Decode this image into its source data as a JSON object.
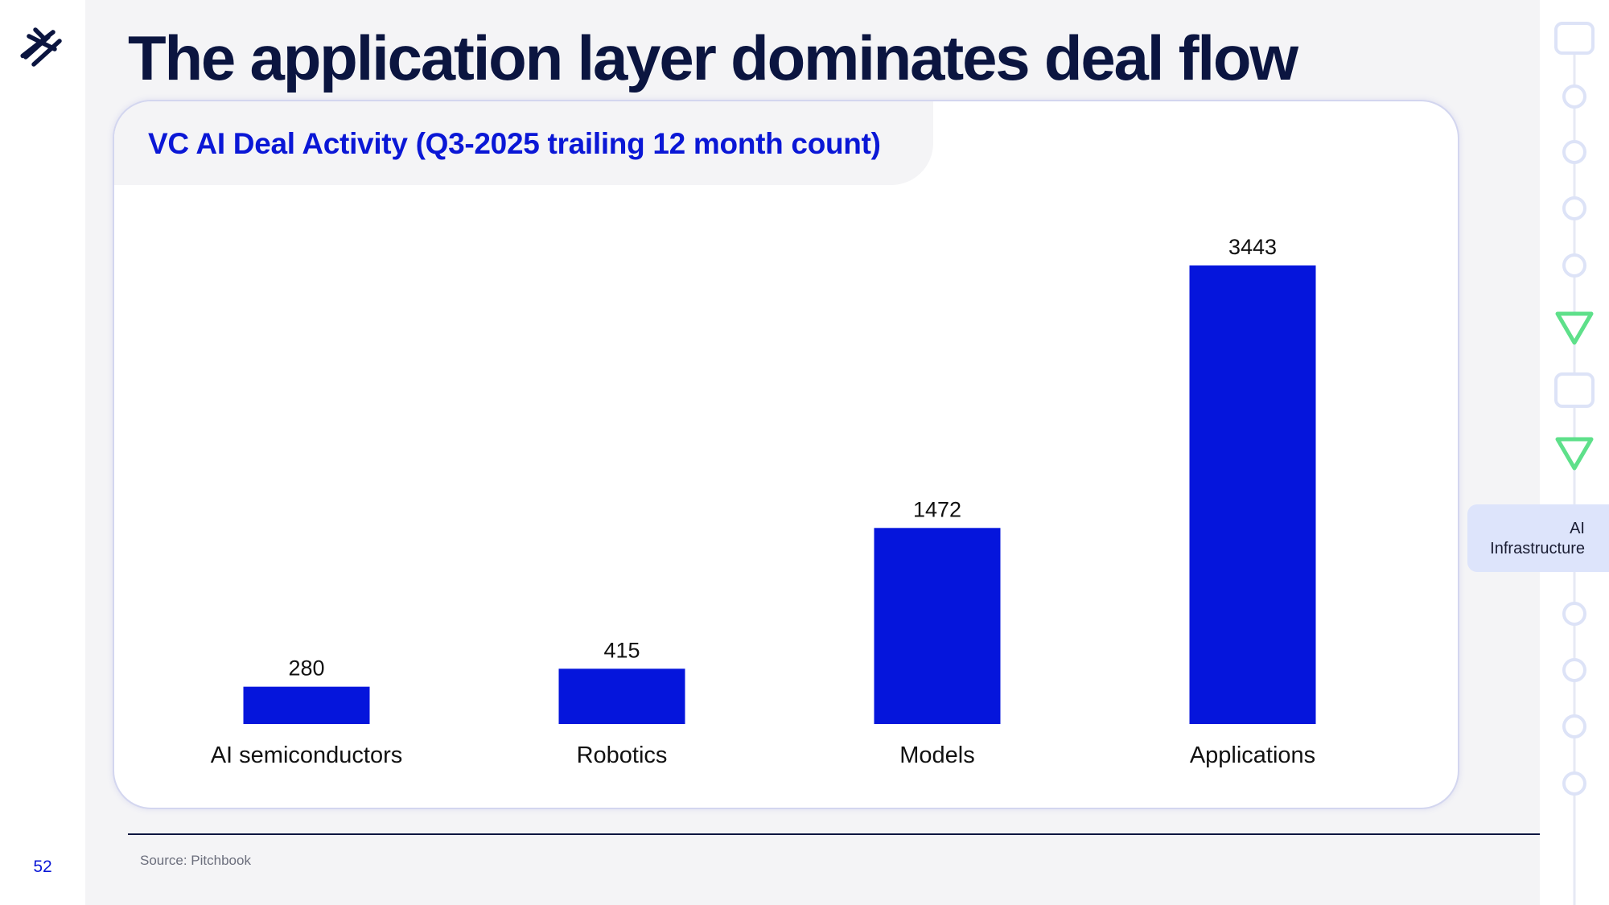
{
  "slide": {
    "title": "The application layer dominates deal flow",
    "page_number": "52",
    "source": "Source: Pitchbook"
  },
  "nav": {
    "section_label": "AI\nInfrastructure",
    "colors": {
      "node": "#dde3f7",
      "marker": "#5ee08a",
      "rail": "#ffffff"
    }
  },
  "colors": {
    "bar": "#0515dc",
    "title": "#0b1540",
    "chart_title": "#0a17d6",
    "background": "#f4f4f6"
  },
  "chart_data": {
    "type": "bar",
    "title": "VC AI Deal Activity (Q3-2025 trailing 12 month count)",
    "categories": [
      "AI semiconductors",
      "Robotics",
      "Models",
      "Applications"
    ],
    "values": [
      280,
      415,
      1472,
      3443
    ],
    "data_labels": [
      "280",
      "415",
      "1472",
      "3443"
    ],
    "xlabel": "",
    "ylabel": "",
    "ylim": [
      0,
      3443
    ],
    "grid": false,
    "legend": "none"
  }
}
